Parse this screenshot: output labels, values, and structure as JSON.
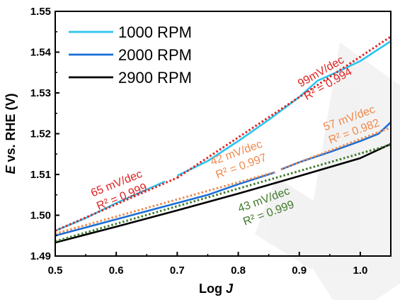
{
  "chart_data": {
    "type": "line",
    "title": "",
    "xlabel": {
      "main": "Log ",
      "italic": "J"
    },
    "ylabel": {
      "italic": "E",
      "main": " vs. RHE (V)"
    },
    "xlim": [
      0.5,
      1.05
    ],
    "ylim": [
      1.49,
      1.55
    ],
    "x_ticks": [
      0.5,
      0.6,
      0.7,
      0.8,
      0.9,
      1.0
    ],
    "x_tick_labels": [
      "0.5",
      "0.6",
      "0.7",
      "0.8",
      "0.9",
      "1.0"
    ],
    "y_ticks": [
      1.49,
      1.5,
      1.51,
      1.52,
      1.53,
      1.54,
      1.55
    ],
    "y_tick_labels": [
      "1.49",
      "1.50",
      "1.51",
      "1.52",
      "1.53",
      "1.54",
      "1.55"
    ],
    "grid": false,
    "legend_position": "top-left",
    "series": [
      {
        "name": "1000 RPM",
        "color": "#29c5f0",
        "segments": [
          [
            [
              0.5,
              1.4962
            ],
            [
              0.55,
              1.4993
            ],
            [
              0.6,
              1.503
            ],
            [
              0.65,
              1.5063
            ],
            [
              0.68,
              1.5083
            ]
          ],
          [
            [
              0.7,
              1.5097
            ],
            [
              0.75,
              1.5133
            ],
            [
              0.8,
              1.5182
            ],
            [
              0.85,
              1.5234
            ],
            [
              0.9,
              1.529
            ],
            [
              0.93,
              1.533
            ],
            [
              0.96,
              1.535
            ],
            [
              1.0,
              1.5378
            ],
            [
              1.05,
              1.5427
            ]
          ]
        ]
      },
      {
        "name": "2000 RPM",
        "color": "#1a6ed8",
        "segments": [
          [
            [
              0.5,
              1.495
            ],
            [
              0.55,
              1.497
            ],
            [
              0.6,
              1.499
            ],
            [
              0.65,
              1.501
            ],
            [
              0.7,
              1.503
            ],
            [
              0.75,
              1.505
            ],
            [
              0.8,
              1.5076
            ],
            [
              0.86,
              1.5105
            ]
          ],
          [
            [
              0.87,
              1.5112
            ],
            [
              0.9,
              1.513
            ],
            [
              0.95,
              1.5155
            ],
            [
              1.0,
              1.5182
            ],
            [
              1.03,
              1.52
            ],
            [
              1.05,
              1.5228
            ]
          ]
        ]
      },
      {
        "name": "2900 RPM",
        "color": "#000000",
        "segments": [
          [
            [
              0.5,
              1.4933
            ],
            [
              0.6,
              1.4972
            ],
            [
              0.7,
              1.5012
            ],
            [
              0.8,
              1.5053
            ],
            [
              0.9,
              1.5096
            ],
            [
              1.0,
              1.514
            ],
            [
              1.05,
              1.5175
            ]
          ]
        ]
      }
    ],
    "fit_lines": [
      {
        "color": "#e02020",
        "points": [
          [
            0.5,
            1.4962
          ],
          [
            0.7,
            1.5092
          ]
        ]
      },
      {
        "color": "#e02020",
        "points": [
          [
            0.7,
            1.5092
          ],
          [
            1.05,
            1.5438
          ]
        ]
      },
      {
        "color": "#f0894a",
        "points": [
          [
            0.5,
            1.4955
          ],
          [
            0.86,
            1.5106
          ]
        ]
      },
      {
        "color": "#f0894a",
        "points": [
          [
            0.87,
            1.5113
          ],
          [
            1.05,
            1.5215
          ]
        ]
      },
      {
        "color": "#3e7a2a",
        "points": [
          [
            0.5,
            1.4936
          ],
          [
            1.05,
            1.5173
          ]
        ]
      }
    ],
    "annotations": [
      {
        "line1": "65 mV/dec",
        "line2": "R² = 0.999",
        "color": "#e02020",
        "x": 0.604,
        "y": 1.5065,
        "rotate": -22
      },
      {
        "line1": "99mV/dec",
        "line2": "R² = 0.994",
        "color": "#e02020",
        "x": 0.94,
        "y": 1.534,
        "rotate": -30
      },
      {
        "line1": "42 mV/dec",
        "line2": "R² = 0.997",
        "color": "#f0894a",
        "x": 0.8,
        "y": 1.514,
        "rotate": -20
      },
      {
        "line1": "57 mV/dec",
        "line2": "R² = 0.982",
        "color": "#f0894a",
        "x": 0.985,
        "y": 1.5225,
        "rotate": -20
      },
      {
        "line1": "43 mV/dec",
        "line2": "R² = 0.999",
        "color": "#3e7a2a",
        "x": 0.845,
        "y": 1.5025,
        "rotate": -20
      }
    ]
  }
}
